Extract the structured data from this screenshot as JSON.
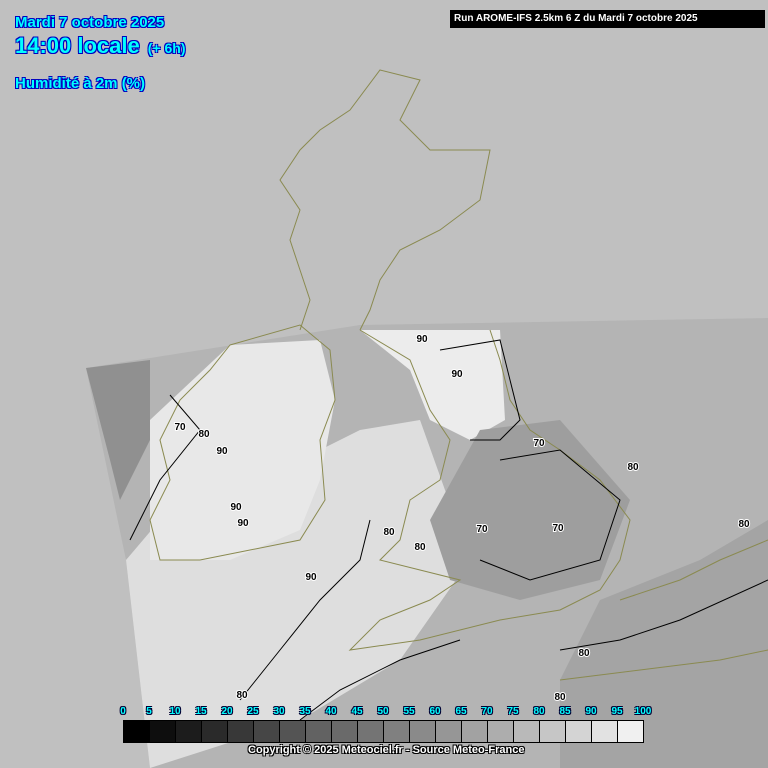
{
  "header": {
    "date": "Mardi 7 octobre 2025",
    "time": "14:00 locale",
    "offset": "(+ 6h)",
    "parameter": "Humidité à 2m (%)"
  },
  "run_info": "Run AROME-IFS 2.5km 6 Z du Mardi 7 octobre 2025",
  "legend": {
    "labels": [
      "0",
      "5",
      "10",
      "15",
      "20",
      "25",
      "30",
      "35",
      "40",
      "45",
      "50",
      "55",
      "60",
      "65",
      "70",
      "75",
      "80",
      "85",
      "90",
      "95",
      "100"
    ],
    "colors": [
      "#000000",
      "#0e0e0e",
      "#1c1c1c",
      "#2a2a2a",
      "#383838",
      "#464646",
      "#545454",
      "#626262",
      "#6a6a6a",
      "#747474",
      "#808080",
      "#8a8a8a",
      "#969696",
      "#a2a2a2",
      "#adadad",
      "#b9b9b9",
      "#c6c6c6",
      "#d4d4d4",
      "#e2e2e2",
      "#f0f0f0"
    ]
  },
  "contour_labels": [
    "90",
    "90",
    "70",
    "80",
    "90",
    "90",
    "90",
    "70",
    "80",
    "70",
    "80",
    "70",
    "80",
    "80",
    "90",
    "80",
    "80",
    "80"
  ],
  "copyright": "Copyright © 2025 Meteociel.fr - Source Meteo-France",
  "colors": {
    "background": "#c0c0c0",
    "header_text": "#00ffff",
    "header_outline": "#0000c0",
    "coastline": "#8a8a50"
  }
}
